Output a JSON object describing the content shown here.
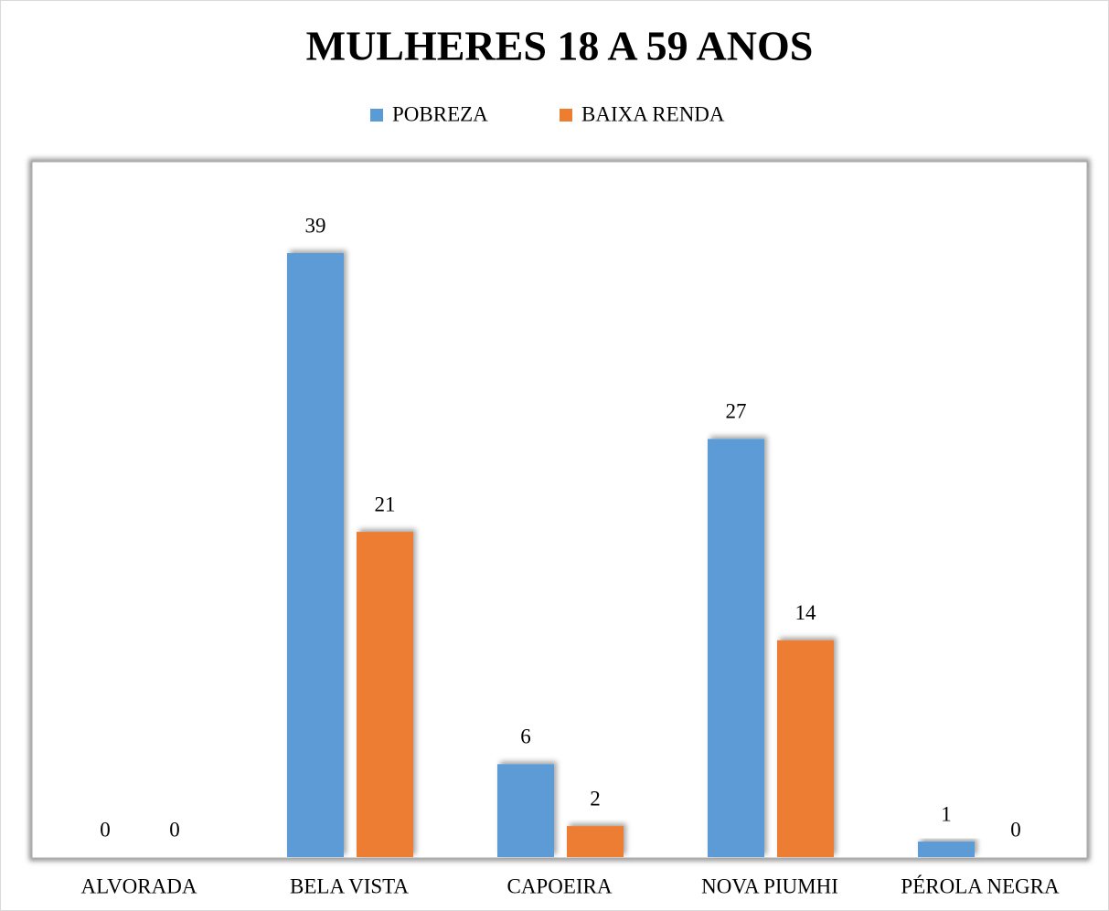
{
  "chart_data": {
    "type": "bar",
    "title": "MULHERES 18 A 59 ANOS",
    "categories": [
      "ALVORADA",
      "BELA VISTA",
      "CAPOEIRA",
      "NOVA PIUMHI",
      "PÉROLA NEGRA"
    ],
    "series": [
      {
        "name": "POBREZA",
        "color": "#5b9bd5",
        "values": [
          0,
          39,
          6,
          27,
          1
        ]
      },
      {
        "name": "BAIXA RENDA",
        "color": "#ed7d31",
        "values": [
          0,
          21,
          2,
          14,
          0
        ]
      }
    ],
    "legend": "top"
  }
}
